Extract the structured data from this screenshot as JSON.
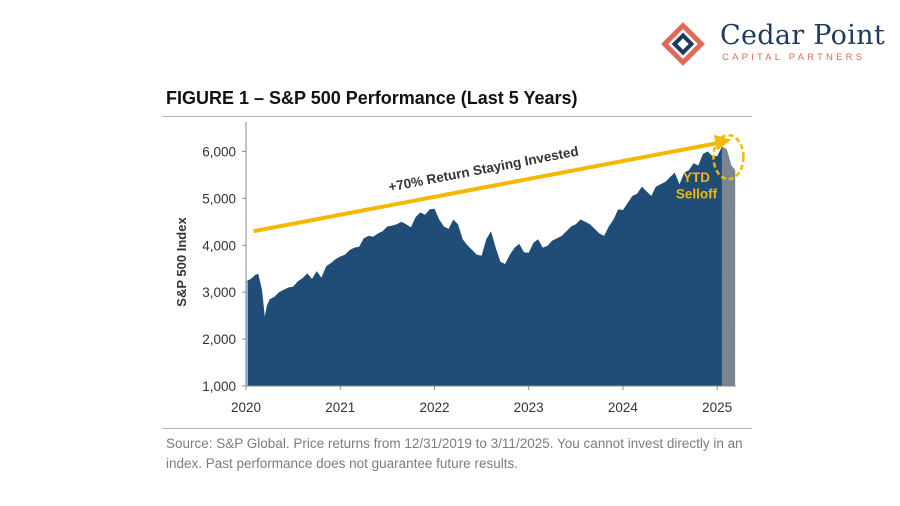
{
  "brand": {
    "name": "Cedar Point",
    "tagline": "CAPITAL PARTNERS",
    "colors": {
      "navy": "#1f3a5f",
      "coral": "#e06a5a"
    }
  },
  "figure": {
    "title": "FIGURE 1 – S&P 500 Performance  (Last 5 Years)",
    "source": "Source: S&P Global. Price returns from 12/31/2019 to 3/11/2025. You cannot invest directly in an index. Past performance does not guarantee future results."
  },
  "chart_data": {
    "type": "area",
    "title": "FIGURE 1 – S&P 500 Performance  (Last 5 Years)",
    "xlabel": "",
    "ylabel": "S&P 500 Index",
    "xlim": [
      2020.0,
      2025.2
    ],
    "ylim": [
      1000,
      6500
    ],
    "x_ticks": [
      2020,
      2021,
      2022,
      2023,
      2024,
      2025
    ],
    "y_ticks": [
      1000,
      2000,
      3000,
      4000,
      5000,
      6000
    ],
    "y_tick_labels": [
      "1,000",
      "2,000",
      "3,000",
      "4,000",
      "5,000",
      "6,000"
    ],
    "fill_color": "#1f4d78",
    "highlight_color": "#7a8590",
    "x": [
      2020.0,
      2020.05,
      2020.1,
      2020.13,
      2020.17,
      2020.2,
      2020.22,
      2020.25,
      2020.3,
      2020.35,
      2020.4,
      2020.45,
      2020.5,
      2020.55,
      2020.6,
      2020.65,
      2020.7,
      2020.75,
      2020.8,
      2020.85,
      2020.9,
      2020.95,
      2021.0,
      2021.05,
      2021.1,
      2021.15,
      2021.2,
      2021.25,
      2021.3,
      2021.35,
      2021.4,
      2021.45,
      2021.5,
      2021.55,
      2021.6,
      2021.65,
      2021.7,
      2021.75,
      2021.8,
      2021.85,
      2021.9,
      2021.95,
      2022.0,
      2022.05,
      2022.1,
      2022.15,
      2022.2,
      2022.25,
      2022.3,
      2022.35,
      2022.4,
      2022.45,
      2022.5,
      2022.55,
      2022.6,
      2022.65,
      2022.7,
      2022.75,
      2022.8,
      2022.85,
      2022.9,
      2022.95,
      2023.0,
      2023.05,
      2023.1,
      2023.15,
      2023.2,
      2023.25,
      2023.3,
      2023.35,
      2023.4,
      2023.45,
      2023.5,
      2023.55,
      2023.6,
      2023.65,
      2023.7,
      2023.75,
      2023.8,
      2023.85,
      2023.9,
      2023.95,
      2024.0,
      2024.05,
      2024.1,
      2024.15,
      2024.2,
      2024.25,
      2024.3,
      2024.35,
      2024.4,
      2024.45,
      2024.5,
      2024.55,
      2024.6,
      2024.65,
      2024.7,
      2024.75,
      2024.8,
      2024.85,
      2024.9,
      2024.95,
      2025.0,
      2025.05,
      2025.1,
      2025.15,
      2025.19
    ],
    "values": [
      3230,
      3280,
      3370,
      3390,
      3050,
      2480,
      2700,
      2850,
      2900,
      3000,
      3050,
      3100,
      3120,
      3230,
      3300,
      3400,
      3280,
      3450,
      3310,
      3550,
      3620,
      3700,
      3760,
      3800,
      3900,
      3950,
      3970,
      4150,
      4200,
      4180,
      4250,
      4300,
      4400,
      4420,
      4450,
      4500,
      4450,
      4380,
      4600,
      4700,
      4650,
      4770,
      4780,
      4550,
      4400,
      4350,
      4550,
      4450,
      4130,
      4000,
      3900,
      3800,
      3780,
      4130,
      4300,
      3950,
      3650,
      3600,
      3800,
      3950,
      4030,
      3850,
      3840,
      4050,
      4130,
      3950,
      3990,
      4100,
      4150,
      4200,
      4300,
      4400,
      4450,
      4550,
      4500,
      4450,
      4350,
      4250,
      4200,
      4400,
      4550,
      4770,
      4750,
      4900,
      5050,
      5100,
      5250,
      5150,
      5050,
      5250,
      5300,
      5350,
      5450,
      5550,
      5300,
      5550,
      5600,
      5750,
      5700,
      5950,
      6000,
      5900,
      5900,
      6100,
      6050,
      5700,
      5600
    ],
    "highlight_from_x": 2025.05,
    "annotations": [
      {
        "text": "+70% Return Staying Invested",
        "type": "arrow",
        "from": [
          2020.08,
          4300
        ],
        "to": [
          2025.15,
          6250
        ],
        "color": "#f5b800"
      },
      {
        "text": "YTD Selloff",
        "lines": [
          "YTD",
          "Selloff"
        ],
        "type": "ellipse",
        "center": [
          2025.12,
          5880
        ],
        "color": "#f5b800"
      }
    ]
  }
}
